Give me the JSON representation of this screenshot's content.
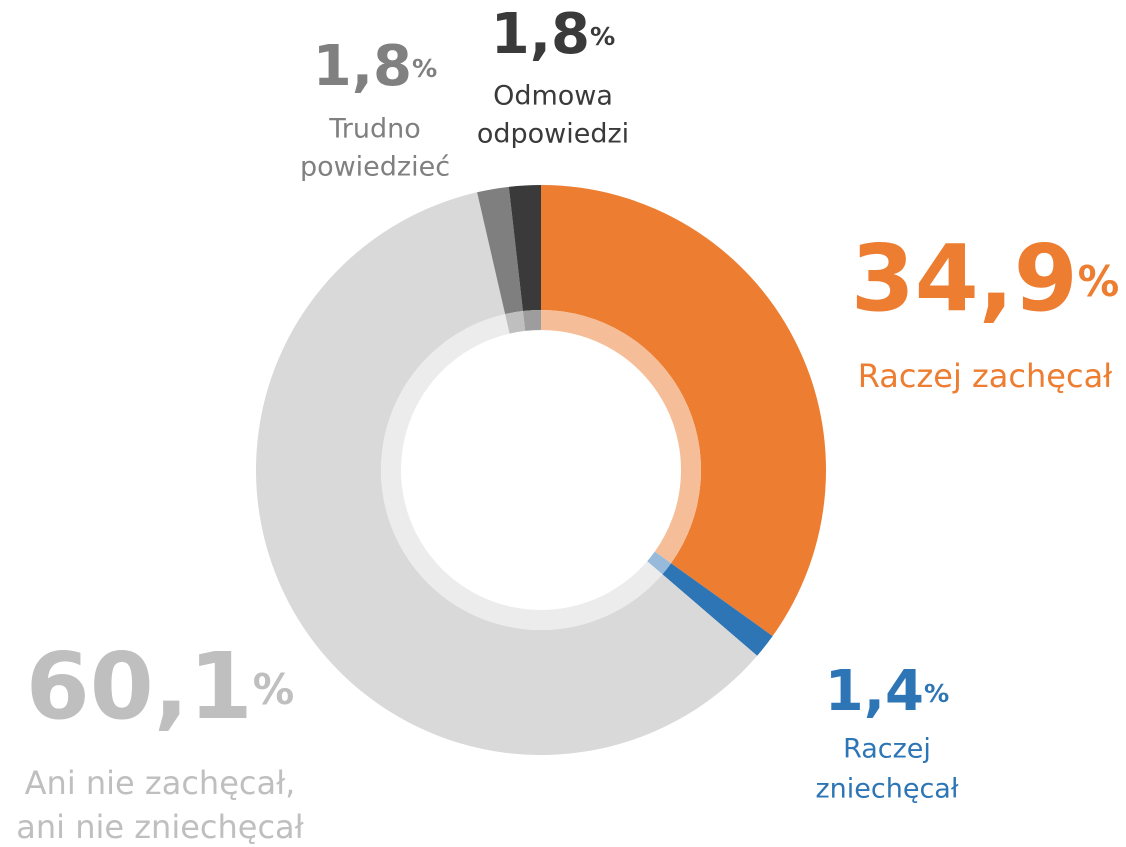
{
  "chart_data": {
    "type": "pie",
    "categories": [
      [
        "Raczej zachęcał"
      ],
      [
        "Raczej",
        "zniechęcał"
      ],
      [
        "Ani nie zachęcał,",
        "ani nie zniechęcał"
      ],
      [
        "Trudno",
        "powiedzieć"
      ],
      [
        "Odmowa",
        "odpowiedzi"
      ]
    ],
    "values": [
      34.9,
      1.4,
      60.1,
      1.8,
      1.8
    ],
    "value_labels": [
      "34,9%",
      "1,4%",
      "60,1%",
      "1,8%",
      "1,8%"
    ],
    "colors": [
      "#ED7D31",
      "#2E75B6",
      "#D9D9D9",
      "#7F7F7F",
      "#3A3A3A"
    ]
  }
}
